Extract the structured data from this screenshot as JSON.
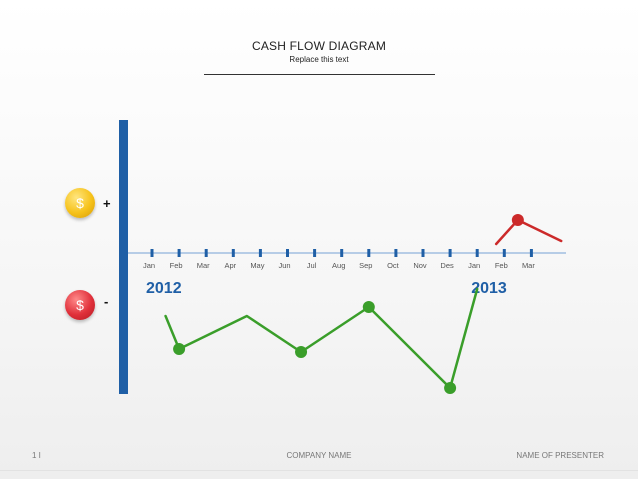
{
  "header": {
    "title": "CASH FLOW DIAGRAM",
    "subtitle": "Replace this text"
  },
  "legend": {
    "positive_symbol": "$",
    "negative_symbol": "$",
    "positive_sign": "+",
    "negative_sign": "-"
  },
  "chart_data": {
    "type": "line",
    "title": "CASH FLOW DIAGRAM",
    "categories": [
      "Jan",
      "Feb",
      "Mar",
      "Apr",
      "May",
      "Jun",
      "Jul",
      "Aug",
      "Sep",
      "Oct",
      "Nov",
      "Des",
      "Jan",
      "Feb",
      "Mar"
    ],
    "year_labels": [
      {
        "label": "2012",
        "start_index": 0
      },
      {
        "label": "2013",
        "start_index": 12
      }
    ],
    "ylim": [
      -5,
      1.5
    ],
    "series": [
      {
        "color": "#3a9e2a",
        "points": [
          {
            "i": 0.5,
            "v": -2.1
          },
          {
            "i": 1,
            "v": -3.2,
            "marker": true
          },
          {
            "i": 3.5,
            "v": -2.1
          },
          {
            "i": 5.5,
            "v": -3.3,
            "marker": true
          },
          {
            "i": 8,
            "v": -1.8,
            "marker": true
          },
          {
            "i": 11,
            "v": -4.5,
            "marker": true
          },
          {
            "i": 12,
            "v": -1.2
          }
        ]
      },
      {
        "color": "#cc2a2a",
        "points": [
          {
            "i": 12.7,
            "v": 0.3
          },
          {
            "i": 13.5,
            "v": 1.1,
            "marker": true
          },
          {
            "i": 15.1,
            "v": 0.4
          }
        ]
      }
    ],
    "axis_color": "#1f5fa6"
  },
  "footer": {
    "page": "1 I",
    "company": "COMPANY NAME",
    "presenter": "NAME OF PRESENTER"
  }
}
